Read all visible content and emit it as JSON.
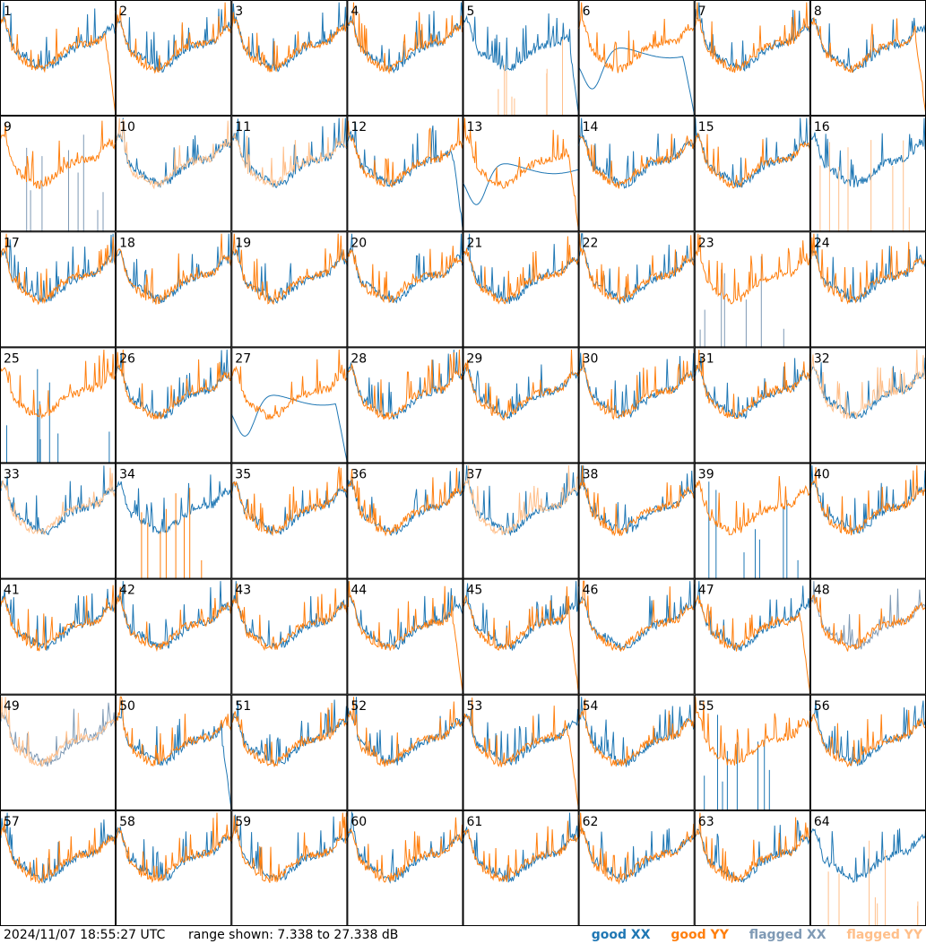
{
  "chart_data": {
    "type": "line",
    "panel_labels": [
      "1",
      "2",
      "3",
      "4",
      "5",
      "6",
      "7",
      "8",
      "9",
      "10",
      "11",
      "12",
      "13",
      "14",
      "15",
      "16",
      "17",
      "18",
      "19",
      "20",
      "21",
      "22",
      "23",
      "24",
      "25",
      "26",
      "27",
      "28",
      "29",
      "30",
      "31",
      "32",
      "33",
      "34",
      "35",
      "36",
      "37",
      "38",
      "39",
      "40",
      "41",
      "42",
      "43",
      "44",
      "45",
      "46",
      "47",
      "48",
      "49",
      "50",
      "51",
      "52",
      "53",
      "54",
      "55",
      "56",
      "57",
      "58",
      "59",
      "60",
      "61",
      "62",
      "63",
      "64"
    ],
    "grid": {
      "rows": 8,
      "cols": 8
    },
    "y_range_db": [
      7.338,
      27.338
    ],
    "panel_states": {
      "xx_flagged": [
        9,
        23,
        48,
        49
      ],
      "yy_flagged": [
        5,
        10,
        11,
        16,
        32,
        33,
        37,
        49,
        64
      ],
      "xx_dropoff": [
        5,
        6,
        12,
        27,
        50
      ],
      "yy_dropoff": [
        1,
        8,
        13,
        44,
        45,
        47,
        53
      ],
      "yy_spikes_only": [
        5,
        16,
        34,
        64
      ],
      "xx_spikes_only": [
        9,
        23,
        25,
        39,
        55
      ],
      "xx_low_smooth": [
        6,
        13,
        23,
        27,
        55
      ],
      "yy_low_smooth": [
        34
      ]
    },
    "colors": {
      "good_xx": "#1f77b4",
      "good_yy": "#ff7f0e",
      "flagged_xx": "#7f9ab5",
      "flagged_yy": "#ffbf8a"
    }
  },
  "footer": {
    "timestamp": "2024/11/07 18:55:27 UTC",
    "range_text": "range shown: 7.338 to 27.338 dB",
    "legend": {
      "good_xx": "good XX",
      "good_yy": "good YY",
      "flagged_xx": "flagged XX",
      "flagged_yy": "flagged YY"
    }
  }
}
